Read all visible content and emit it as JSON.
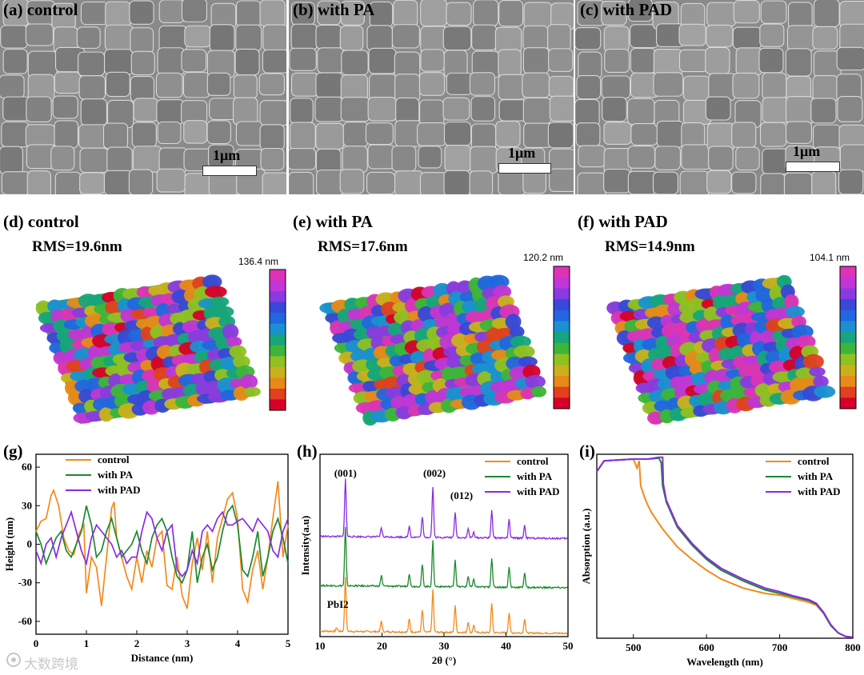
{
  "sem": [
    {
      "label": "(a) control",
      "scale_text": "1μm"
    },
    {
      "label": "(b) with PA",
      "scale_text": "1μm"
    },
    {
      "label": "(c) with PAD",
      "scale_text": "1μm"
    }
  ],
  "afm": [
    {
      "label": "(d) control",
      "rms": "RMS=19.6nm",
      "max": "136.4 nm"
    },
    {
      "label": "(e) with PA",
      "rms": "RMS=17.6nm",
      "max": "120.2 nm"
    },
    {
      "label": "(f) with PAD",
      "rms": "RMS=14.9nm",
      "max": "104.1 nm"
    }
  ],
  "colorbar": [
    "#d6002a",
    "#e2401e",
    "#e88a18",
    "#c9b11e",
    "#90c022",
    "#3db53a",
    "#16a57c",
    "#1a90d2",
    "#2266e0",
    "#3848d8",
    "#8a3ae0",
    "#c235d6",
    "#dc33b8"
  ],
  "watermark": "大数跨境",
  "chart_data": [
    {
      "type": "line",
      "panel": "(g)",
      "xlabel": "Distance (nm)",
      "ylabel": "Height (nm)",
      "xlim": [
        0,
        5
      ],
      "ylim": [
        -70,
        70
      ],
      "xticks": [
        0,
        1,
        2,
        3,
        4,
        5
      ],
      "yticks": [
        -60,
        -30,
        0,
        30,
        60
      ],
      "legend_position": "top-center",
      "series": [
        {
          "name": "control",
          "color": "#f28a1d",
          "x": [
            0,
            0.1,
            0.2,
            0.3,
            0.35,
            0.45,
            0.55,
            0.65,
            0.75,
            0.85,
            0.95,
            1.0,
            1.1,
            1.2,
            1.3,
            1.4,
            1.5,
            1.55,
            1.6,
            1.7,
            1.8,
            1.9,
            2.0,
            2.1,
            2.2,
            2.3,
            2.4,
            2.5,
            2.6,
            2.7,
            2.8,
            2.9,
            3.0,
            3.1,
            3.2,
            3.3,
            3.4,
            3.5,
            3.6,
            3.7,
            3.8,
            3.9,
            4.0,
            4.1,
            4.2,
            4.3,
            4.4,
            4.5,
            4.6,
            4.7,
            4.8,
            4.9,
            5.0
          ],
          "y": [
            10,
            18,
            20,
            38,
            42,
            30,
            5,
            -5,
            -8,
            8,
            15,
            -38,
            -10,
            -18,
            -48,
            -10,
            28,
            33,
            5,
            -10,
            -25,
            -35,
            -10,
            -30,
            -5,
            -18,
            5,
            10,
            -32,
            -35,
            -10,
            -40,
            -50,
            -15,
            5,
            -20,
            10,
            -30,
            5,
            20,
            35,
            40,
            20,
            -35,
            -45,
            -20,
            -5,
            -35,
            -10,
            20,
            49,
            -10,
            15
          ]
        },
        {
          "name": "with PA",
          "color": "#1a8a2e",
          "x": [
            0,
            0.1,
            0.2,
            0.3,
            0.4,
            0.5,
            0.6,
            0.7,
            0.8,
            0.9,
            1.0,
            1.1,
            1.2,
            1.3,
            1.4,
            1.5,
            1.6,
            1.7,
            1.8,
            1.9,
            2.0,
            2.1,
            2.2,
            2.3,
            2.4,
            2.5,
            2.6,
            2.7,
            2.8,
            2.9,
            3.0,
            3.1,
            3.2,
            3.3,
            3.4,
            3.5,
            3.6,
            3.7,
            3.8,
            3.9,
            4.0,
            4.1,
            4.2,
            4.3,
            4.4,
            4.5,
            4.6,
            4.7,
            4.8,
            4.9,
            5.0
          ],
          "y": [
            10,
            0,
            -15,
            -5,
            5,
            10,
            -5,
            -10,
            0,
            10,
            30,
            15,
            -10,
            -5,
            10,
            20,
            5,
            -10,
            -5,
            0,
            10,
            -5,
            -15,
            5,
            15,
            20,
            10,
            -10,
            -25,
            -30,
            -20,
            10,
            -30,
            -10,
            0,
            -20,
            -10,
            10,
            25,
            30,
            15,
            -20,
            -25,
            -10,
            10,
            -25,
            -10,
            10,
            20,
            5,
            -15
          ]
        },
        {
          "name": "with PAD",
          "color": "#8a2be2",
          "x": [
            0,
            0.1,
            0.2,
            0.3,
            0.4,
            0.5,
            0.6,
            0.7,
            0.8,
            0.9,
            1.0,
            1.1,
            1.2,
            1.3,
            1.4,
            1.5,
            1.6,
            1.7,
            1.8,
            1.9,
            2.0,
            2.1,
            2.2,
            2.3,
            2.4,
            2.5,
            2.6,
            2.7,
            2.8,
            2.9,
            3.0,
            3.1,
            3.2,
            3.3,
            3.4,
            3.5,
            3.6,
            3.7,
            3.8,
            3.9,
            4.0,
            4.1,
            4.2,
            4.3,
            4.4,
            4.5,
            4.6,
            4.7,
            4.8,
            4.9,
            5.0
          ],
          "y": [
            -5,
            -15,
            0,
            5,
            -10,
            5,
            15,
            25,
            10,
            -5,
            -15,
            5,
            15,
            10,
            5,
            0,
            -10,
            -5,
            -15,
            -10,
            -10,
            10,
            25,
            20,
            5,
            -5,
            10,
            15,
            -20,
            -25,
            -20,
            -5,
            -15,
            10,
            15,
            10,
            20,
            25,
            15,
            15,
            18,
            20,
            15,
            10,
            20,
            15,
            10,
            -5,
            -10,
            10,
            20
          ]
        }
      ]
    },
    {
      "type": "line",
      "panel": "(h)",
      "xlabel": "2θ (°)",
      "ylabel": "Intensity(a.u)",
      "xlim": [
        10,
        50
      ],
      "xticks": [
        10,
        20,
        30,
        40,
        50
      ],
      "legend_position": "top-right",
      "peak_positions": [
        12.7,
        14.1,
        19.9,
        24.4,
        26.5,
        28.2,
        31.8,
        33.9,
        34.8,
        37.7,
        40.5,
        43.0
      ],
      "peak_labels": [
        {
          "text": "(001)",
          "two_theta": 14.1
        },
        {
          "text": "(002)",
          "two_theta": 28.2
        },
        {
          "text": "(012)",
          "two_theta": 31.8
        },
        {
          "text": "PbI2",
          "two_theta": 12.7
        }
      ],
      "series": [
        {
          "name": "control",
          "color": "#f28a1d",
          "offset": 0,
          "peak_heights": [
            2,
            30,
            6,
            7,
            12,
            23,
            15,
            6,
            4,
            16,
            11,
            8
          ]
        },
        {
          "name": "with PA",
          "color": "#1a8a2e",
          "offset": 25,
          "peak_heights": [
            0,
            32,
            6,
            7,
            12,
            25,
            15,
            6,
            4,
            16,
            11,
            8
          ]
        },
        {
          "name": "with PAD",
          "color": "#8a2be2",
          "offset": 52,
          "peak_heights": [
            0,
            32,
            5,
            6,
            11,
            28,
            14,
            5,
            3,
            15,
            10,
            7
          ]
        }
      ]
    },
    {
      "type": "line",
      "panel": "(i)",
      "xlabel": "Wavelength (nm)",
      "ylabel": "Absorption (a.u.)",
      "xlim": [
        450,
        800
      ],
      "xticks": [
        500,
        600,
        700,
        800
      ],
      "legend_position": "top-right",
      "series": [
        {
          "name": "control",
          "color": "#f28a1d",
          "x": [
            450,
            460,
            480,
            500,
            505,
            508,
            510,
            515,
            520,
            525,
            530,
            540,
            560,
            580,
            600,
            620,
            650,
            680,
            700,
            720,
            740,
            750,
            760,
            770,
            780,
            790,
            800
          ],
          "y": [
            0.93,
            0.99,
            0.995,
            1.0,
            0.95,
            0.99,
            0.85,
            0.79,
            0.74,
            0.7,
            0.67,
            0.61,
            0.51,
            0.44,
            0.38,
            0.33,
            0.28,
            0.25,
            0.24,
            0.22,
            0.2,
            0.185,
            0.14,
            0.07,
            0.03,
            0.01,
            0.005
          ]
        },
        {
          "name": "with PA",
          "color": "#1a8a2e",
          "x": [
            450,
            460,
            480,
            500,
            520,
            535,
            538,
            540,
            545,
            560,
            580,
            600,
            620,
            650,
            680,
            700,
            720,
            740,
            750,
            760,
            770,
            780,
            790,
            800
          ],
          "y": [
            0.93,
            0.99,
            0.995,
            1.0,
            1.0,
            1.005,
            0.98,
            0.85,
            0.76,
            0.62,
            0.52,
            0.44,
            0.38,
            0.32,
            0.27,
            0.25,
            0.23,
            0.21,
            0.19,
            0.14,
            0.07,
            0.03,
            0.01,
            0.005
          ]
        },
        {
          "name": "with PAD",
          "color": "#8a2be2",
          "x": [
            450,
            460,
            480,
            500,
            520,
            535,
            540,
            541,
            545,
            560,
            580,
            600,
            620,
            650,
            680,
            700,
            720,
            740,
            750,
            760,
            770,
            780,
            790,
            800
          ],
          "y": [
            0.93,
            0.99,
            0.995,
            1.0,
            1.0,
            1.01,
            1.01,
            0.86,
            0.77,
            0.63,
            0.53,
            0.45,
            0.39,
            0.33,
            0.28,
            0.26,
            0.235,
            0.215,
            0.195,
            0.145,
            0.075,
            0.03,
            0.01,
            0.005
          ]
        }
      ]
    }
  ]
}
